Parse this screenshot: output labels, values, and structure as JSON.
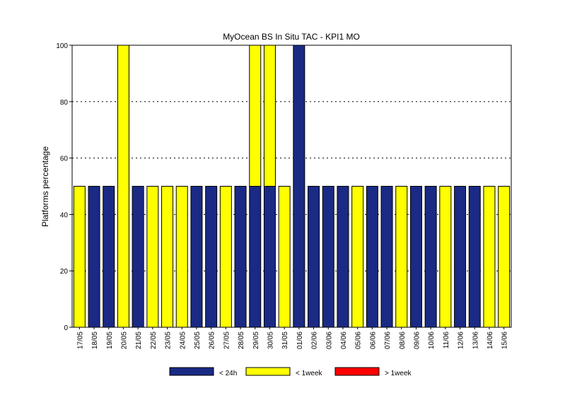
{
  "chart_data": {
    "type": "bar",
    "stacked": true,
    "title": "MyOcean  BS In Situ TAC - KPI1  MO",
    "xlabel": "",
    "ylabel": "Platforms percentage",
    "ylim": [
      0,
      100
    ],
    "yticks": [
      0,
      20,
      40,
      60,
      80,
      100
    ],
    "grid": "horizontal dotted",
    "legend_placement": "bottom",
    "categories": [
      "17/05",
      "18/05",
      "19/05",
      "20/05",
      "21/05",
      "22/05",
      "23/05",
      "24/05",
      "25/05",
      "26/05",
      "27/05",
      "28/05",
      "29/05",
      "30/05",
      "31/05",
      "01/06",
      "02/06",
      "03/06",
      "04/06",
      "05/06",
      "06/06",
      "07/06",
      "08/06",
      "09/06",
      "10/06",
      "11/06",
      "12/06",
      "13/06",
      "14/06",
      "15/06"
    ],
    "series": [
      {
        "name": "< 24h",
        "color": "#1a2a85",
        "values": [
          0,
          50,
          50,
          0,
          50,
          0,
          0,
          0,
          50,
          50,
          0,
          50,
          50,
          50,
          0,
          100,
          50,
          50,
          50,
          0,
          50,
          50,
          0,
          50,
          50,
          0,
          50,
          50,
          0,
          0
        ]
      },
      {
        "name": "< 1week",
        "color": "#ffff00",
        "values": [
          50,
          0,
          0,
          100,
          0,
          50,
          50,
          50,
          0,
          0,
          50,
          0,
          50,
          50,
          50,
          0,
          0,
          0,
          0,
          50,
          0,
          0,
          50,
          0,
          0,
          50,
          0,
          0,
          50,
          50
        ]
      },
      {
        "name": "> 1week",
        "color": "#ff0000",
        "values": [
          0,
          0,
          0,
          0,
          0,
          0,
          0,
          0,
          0,
          0,
          0,
          0,
          0,
          0,
          0,
          0,
          0,
          0,
          0,
          0,
          0,
          0,
          0,
          0,
          0,
          0,
          0,
          0,
          0,
          0
        ]
      }
    ]
  }
}
